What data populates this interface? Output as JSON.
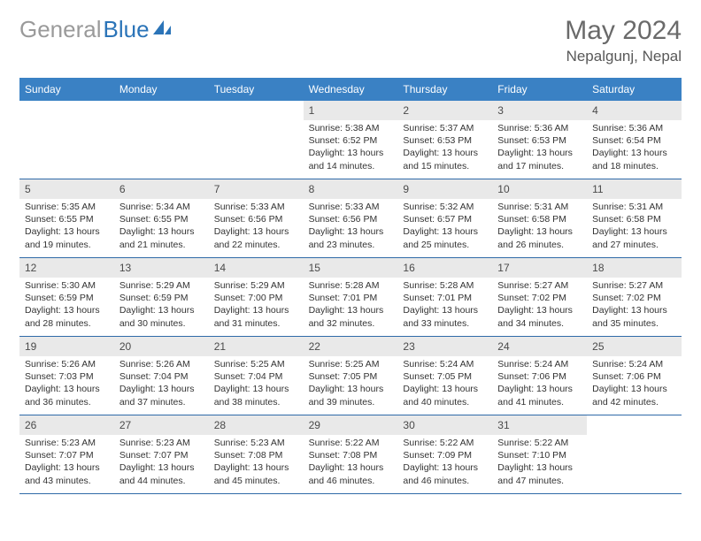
{
  "logo": {
    "gray": "General",
    "blue": "Blue"
  },
  "header": {
    "title": "May 2024",
    "location": "Nepalgunj, Nepal"
  },
  "colors": {
    "header_bar": "#3a81c4",
    "header_text": "#ffffff",
    "daynum_bg": "#e9e9e9",
    "daynum_text": "#4a4a4a",
    "body_text": "#333333",
    "week_border": "#2f6aa8",
    "title_color": "#6a6a6a",
    "logo_gray": "#9a9a9a",
    "logo_blue": "#2b74b8"
  },
  "weekdays": [
    "Sunday",
    "Monday",
    "Tuesday",
    "Wednesday",
    "Thursday",
    "Friday",
    "Saturday"
  ],
  "grid": [
    [
      null,
      null,
      null,
      {
        "day": "1",
        "sunrise": "5:38 AM",
        "sunset": "6:52 PM",
        "daylight": "13 hours and 14 minutes."
      },
      {
        "day": "2",
        "sunrise": "5:37 AM",
        "sunset": "6:53 PM",
        "daylight": "13 hours and 15 minutes."
      },
      {
        "day": "3",
        "sunrise": "5:36 AM",
        "sunset": "6:53 PM",
        "daylight": "13 hours and 17 minutes."
      },
      {
        "day": "4",
        "sunrise": "5:36 AM",
        "sunset": "6:54 PM",
        "daylight": "13 hours and 18 minutes."
      }
    ],
    [
      {
        "day": "5",
        "sunrise": "5:35 AM",
        "sunset": "6:55 PM",
        "daylight": "13 hours and 19 minutes."
      },
      {
        "day": "6",
        "sunrise": "5:34 AM",
        "sunset": "6:55 PM",
        "daylight": "13 hours and 21 minutes."
      },
      {
        "day": "7",
        "sunrise": "5:33 AM",
        "sunset": "6:56 PM",
        "daylight": "13 hours and 22 minutes."
      },
      {
        "day": "8",
        "sunrise": "5:33 AM",
        "sunset": "6:56 PM",
        "daylight": "13 hours and 23 minutes."
      },
      {
        "day": "9",
        "sunrise": "5:32 AM",
        "sunset": "6:57 PM",
        "daylight": "13 hours and 25 minutes."
      },
      {
        "day": "10",
        "sunrise": "5:31 AM",
        "sunset": "6:58 PM",
        "daylight": "13 hours and 26 minutes."
      },
      {
        "day": "11",
        "sunrise": "5:31 AM",
        "sunset": "6:58 PM",
        "daylight": "13 hours and 27 minutes."
      }
    ],
    [
      {
        "day": "12",
        "sunrise": "5:30 AM",
        "sunset": "6:59 PM",
        "daylight": "13 hours and 28 minutes."
      },
      {
        "day": "13",
        "sunrise": "5:29 AM",
        "sunset": "6:59 PM",
        "daylight": "13 hours and 30 minutes."
      },
      {
        "day": "14",
        "sunrise": "5:29 AM",
        "sunset": "7:00 PM",
        "daylight": "13 hours and 31 minutes."
      },
      {
        "day": "15",
        "sunrise": "5:28 AM",
        "sunset": "7:01 PM",
        "daylight": "13 hours and 32 minutes."
      },
      {
        "day": "16",
        "sunrise": "5:28 AM",
        "sunset": "7:01 PM",
        "daylight": "13 hours and 33 minutes."
      },
      {
        "day": "17",
        "sunrise": "5:27 AM",
        "sunset": "7:02 PM",
        "daylight": "13 hours and 34 minutes."
      },
      {
        "day": "18",
        "sunrise": "5:27 AM",
        "sunset": "7:02 PM",
        "daylight": "13 hours and 35 minutes."
      }
    ],
    [
      {
        "day": "19",
        "sunrise": "5:26 AM",
        "sunset": "7:03 PM",
        "daylight": "13 hours and 36 minutes."
      },
      {
        "day": "20",
        "sunrise": "5:26 AM",
        "sunset": "7:04 PM",
        "daylight": "13 hours and 37 minutes."
      },
      {
        "day": "21",
        "sunrise": "5:25 AM",
        "sunset": "7:04 PM",
        "daylight": "13 hours and 38 minutes."
      },
      {
        "day": "22",
        "sunrise": "5:25 AM",
        "sunset": "7:05 PM",
        "daylight": "13 hours and 39 minutes."
      },
      {
        "day": "23",
        "sunrise": "5:24 AM",
        "sunset": "7:05 PM",
        "daylight": "13 hours and 40 minutes."
      },
      {
        "day": "24",
        "sunrise": "5:24 AM",
        "sunset": "7:06 PM",
        "daylight": "13 hours and 41 minutes."
      },
      {
        "day": "25",
        "sunrise": "5:24 AM",
        "sunset": "7:06 PM",
        "daylight": "13 hours and 42 minutes."
      }
    ],
    [
      {
        "day": "26",
        "sunrise": "5:23 AM",
        "sunset": "7:07 PM",
        "daylight": "13 hours and 43 minutes."
      },
      {
        "day": "27",
        "sunrise": "5:23 AM",
        "sunset": "7:07 PM",
        "daylight": "13 hours and 44 minutes."
      },
      {
        "day": "28",
        "sunrise": "5:23 AM",
        "sunset": "7:08 PM",
        "daylight": "13 hours and 45 minutes."
      },
      {
        "day": "29",
        "sunrise": "5:22 AM",
        "sunset": "7:08 PM",
        "daylight": "13 hours and 46 minutes."
      },
      {
        "day": "30",
        "sunrise": "5:22 AM",
        "sunset": "7:09 PM",
        "daylight": "13 hours and 46 minutes."
      },
      {
        "day": "31",
        "sunrise": "5:22 AM",
        "sunset": "7:10 PM",
        "daylight": "13 hours and 47 minutes."
      },
      null
    ]
  ],
  "labels": {
    "sunrise": "Sunrise:",
    "sunset": "Sunset:",
    "daylight": "Daylight:"
  }
}
